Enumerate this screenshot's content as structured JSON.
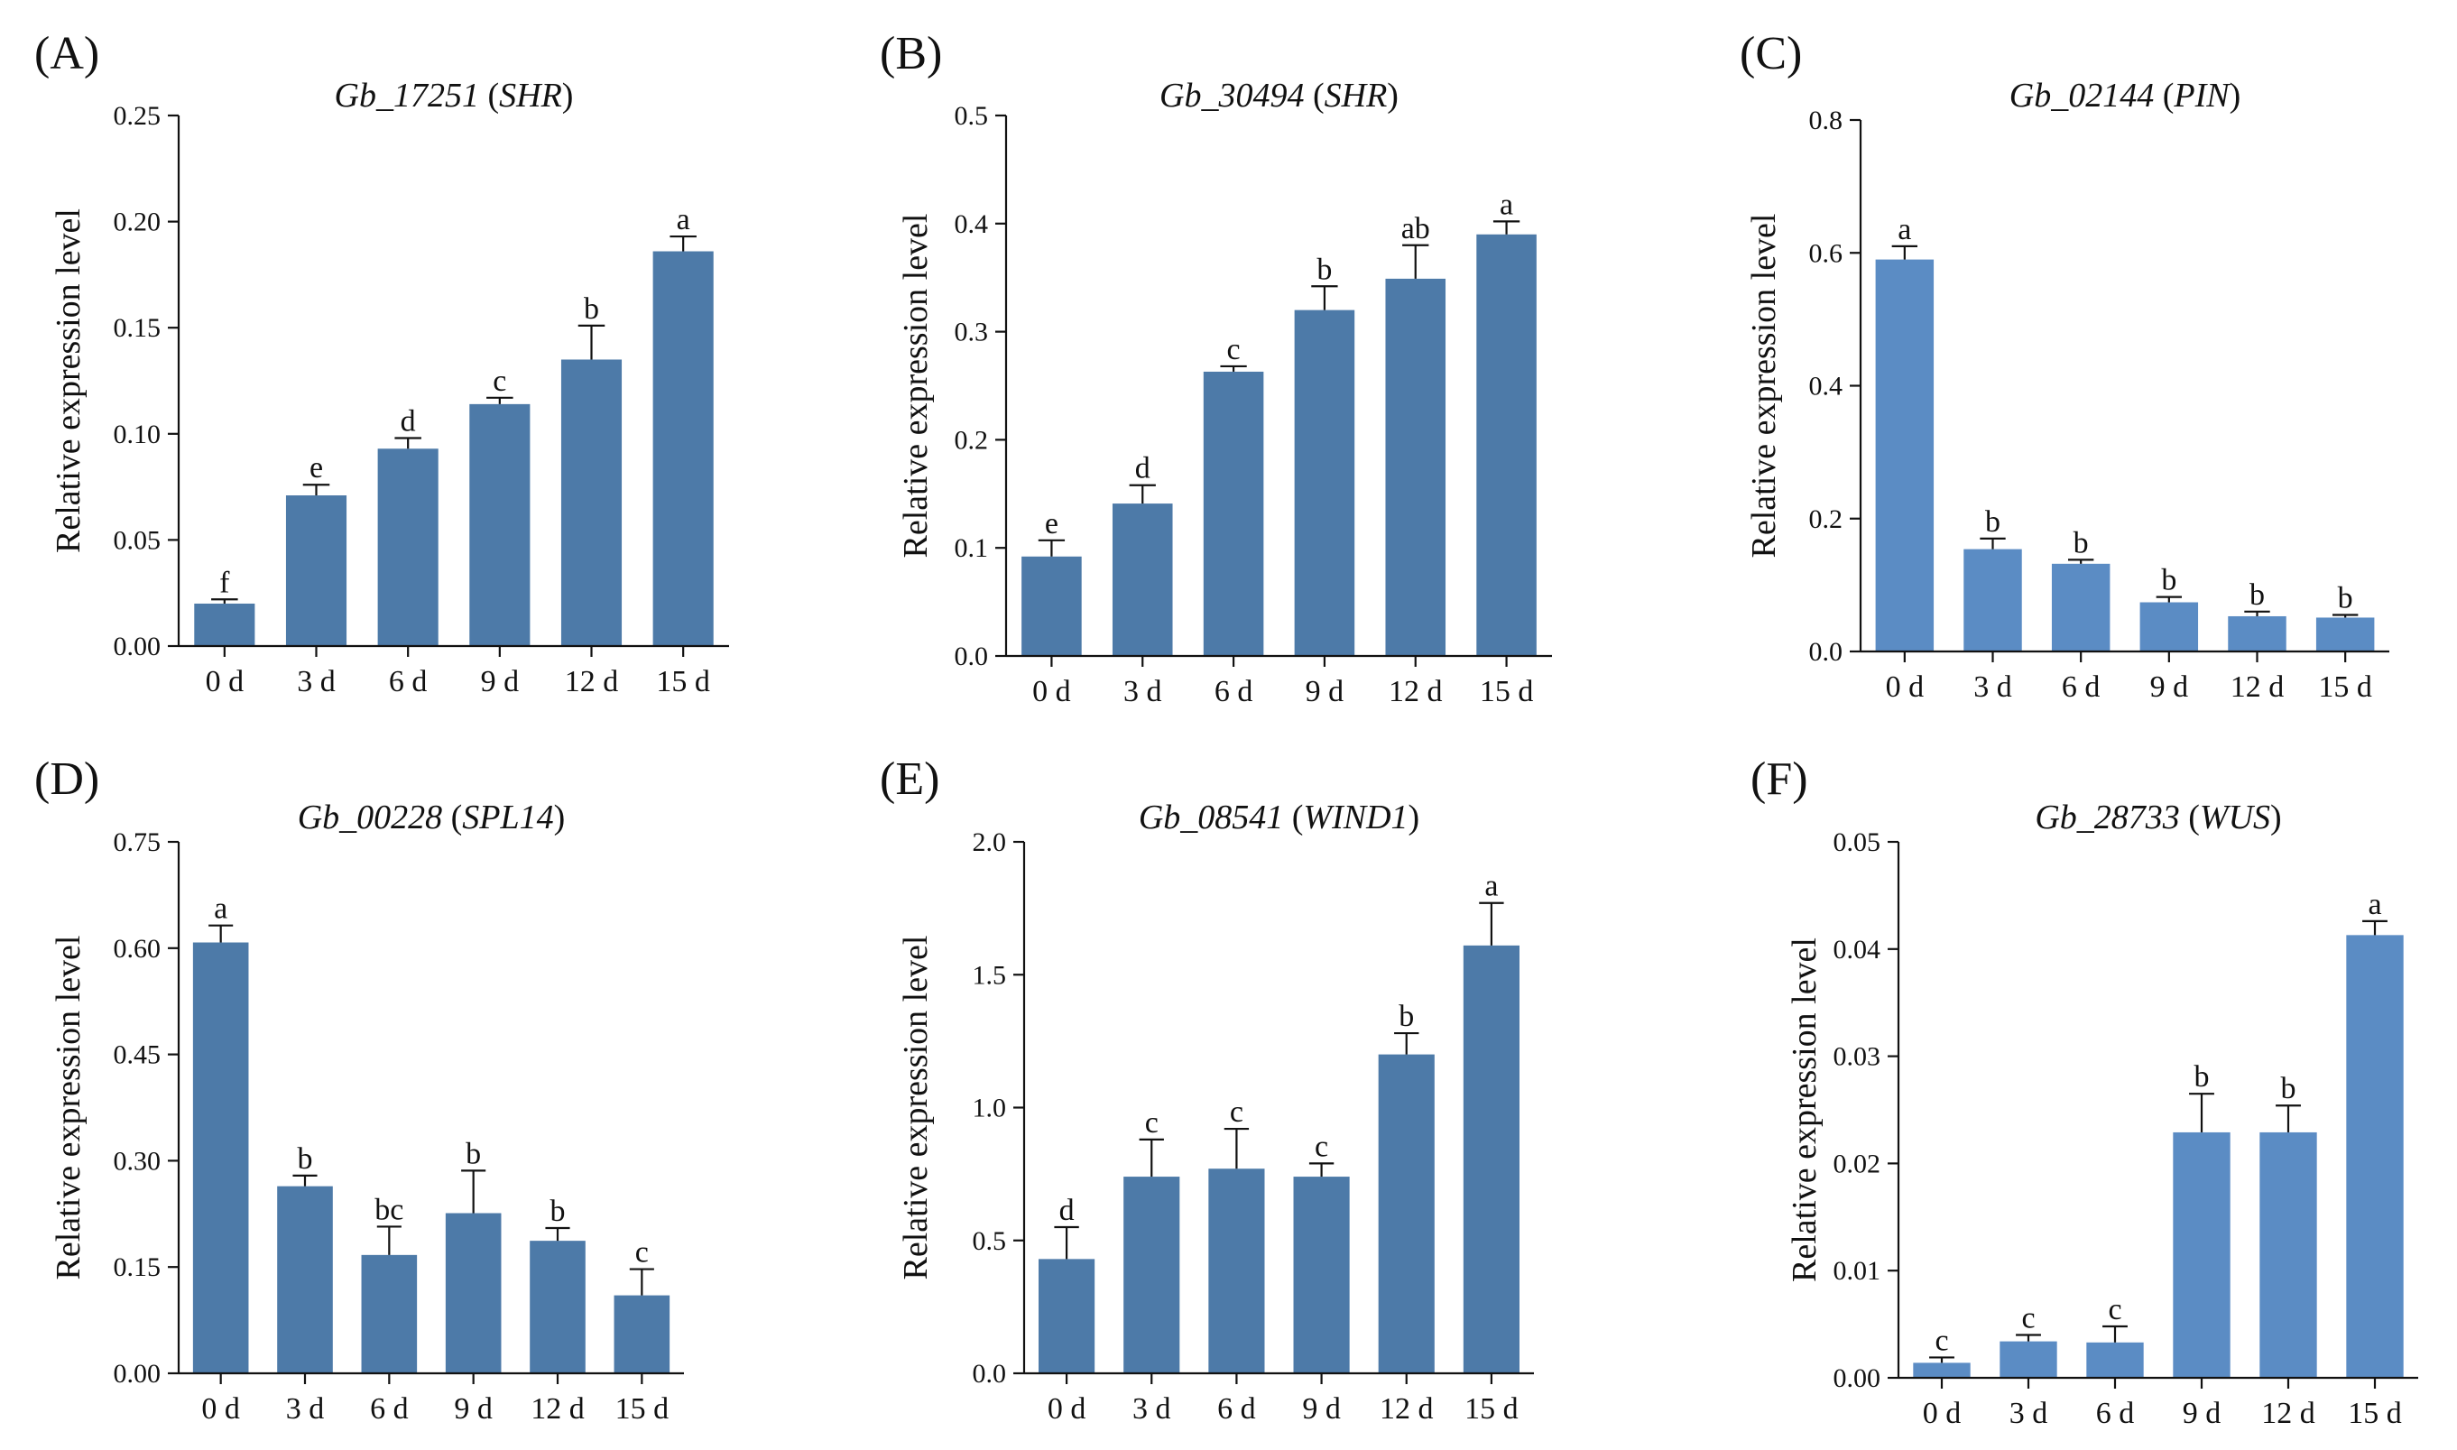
{
  "colors": {
    "bar": "#4d7aa8",
    "bar_light": "#5b8cc4",
    "axis": "#111111"
  },
  "chart_data": [
    {
      "panel": "(A)",
      "type": "bar",
      "gene_id": "Gb_17251",
      "gene_name": "SHR",
      "ylabel": "Relative expression level",
      "categories": [
        "0 d",
        "3 d",
        "6 d",
        "9 d",
        "12 d",
        "15 d"
      ],
      "values": [
        0.02,
        0.071,
        0.093,
        0.114,
        0.135,
        0.186
      ],
      "errors": [
        0.002,
        0.005,
        0.005,
        0.003,
        0.016,
        0.007
      ],
      "significance": [
        "f",
        "e",
        "d",
        "c",
        "b",
        "a"
      ],
      "ylim": [
        0,
        0.25
      ],
      "yticks": [
        "0.00",
        "0.05",
        "0.10",
        "0.15",
        "0.20",
        "0.25"
      ]
    },
    {
      "panel": "(B)",
      "type": "bar",
      "gene_id": "Gb_30494",
      "gene_name": "SHR",
      "ylabel": "Relative expression level",
      "categories": [
        "0 d",
        "3 d",
        "6 d",
        "9 d",
        "12 d",
        "15 d"
      ],
      "values": [
        0.092,
        0.141,
        0.263,
        0.32,
        0.349,
        0.39
      ],
      "errors": [
        0.015,
        0.017,
        0.005,
        0.022,
        0.031,
        0.012
      ],
      "significance": [
        "e",
        "d",
        "c",
        "b",
        "ab",
        "a"
      ],
      "ylim": [
        0,
        0.5
      ],
      "yticks": [
        "0.0",
        "0.1",
        "0.2",
        "0.3",
        "0.4",
        "0.5"
      ]
    },
    {
      "panel": "(C)",
      "type": "bar",
      "gene_id": "Gb_02144",
      "gene_name": "PIN",
      "ylabel": "Relative expression level",
      "categories": [
        "0 d",
        "3 d",
        "6 d",
        "9 d",
        "12 d",
        "15 d"
      ],
      "values": [
        0.59,
        0.154,
        0.132,
        0.074,
        0.053,
        0.051
      ],
      "errors": [
        0.02,
        0.016,
        0.006,
        0.008,
        0.007,
        0.004
      ],
      "significance": [
        "a",
        "b",
        "b",
        "b",
        "b",
        "b"
      ],
      "ylim": [
        0,
        0.8
      ],
      "yticks": [
        "0.0",
        "0.2",
        "0.4",
        "0.6",
        "0.8"
      ]
    },
    {
      "panel": "(D)",
      "type": "bar",
      "gene_id": "Gb_00228",
      "gene_name": "SPL14",
      "ylabel": "Relative expression level",
      "categories": [
        "0 d",
        "3 d",
        "6 d",
        "9 d",
        "12 d",
        "15 d"
      ],
      "values": [
        0.608,
        0.264,
        0.167,
        0.226,
        0.187,
        0.11
      ],
      "errors": [
        0.024,
        0.015,
        0.04,
        0.06,
        0.018,
        0.037
      ],
      "significance": [
        "a",
        "b",
        "bc",
        "b",
        "b",
        "c"
      ],
      "ylim": [
        0,
        0.75
      ],
      "yticks": [
        "0.00",
        "0.15",
        "0.30",
        "0.45",
        "0.60",
        "0.75"
      ]
    },
    {
      "panel": "(E)",
      "type": "bar",
      "gene_id": "Gb_08541",
      "gene_name": "WIND1",
      "ylabel": "Relative expression level",
      "categories": [
        "0 d",
        "3 d",
        "6 d",
        "9 d",
        "12 d",
        "15 d"
      ],
      "values": [
        0.43,
        0.74,
        0.77,
        0.74,
        1.2,
        1.61
      ],
      "errors": [
        0.12,
        0.14,
        0.15,
        0.05,
        0.08,
        0.16
      ],
      "significance": [
        "d",
        "c",
        "c",
        "c",
        "b",
        "a"
      ],
      "ylim": [
        0,
        2.0
      ],
      "yticks": [
        "0.0",
        "0.5",
        "1.0",
        "1.5",
        "2.0"
      ]
    },
    {
      "panel": "(F)",
      "type": "bar",
      "gene_id": "Gb_28733",
      "gene_name": "WUS",
      "ylabel": "Relative expression level",
      "categories": [
        "0 d",
        "3 d",
        "6 d",
        "9 d",
        "12 d",
        "15 d"
      ],
      "values": [
        0.0014,
        0.0034,
        0.0033,
        0.0229,
        0.0229,
        0.0413
      ],
      "errors": [
        0.0005,
        0.0006,
        0.0015,
        0.0036,
        0.0025,
        0.0013
      ],
      "significance": [
        "c",
        "c",
        "c",
        "b",
        "b",
        "a"
      ],
      "ylim": [
        0,
        0.05
      ],
      "yticks": [
        "0.00",
        "0.01",
        "0.02",
        "0.03",
        "0.04",
        "0.05"
      ]
    }
  ]
}
